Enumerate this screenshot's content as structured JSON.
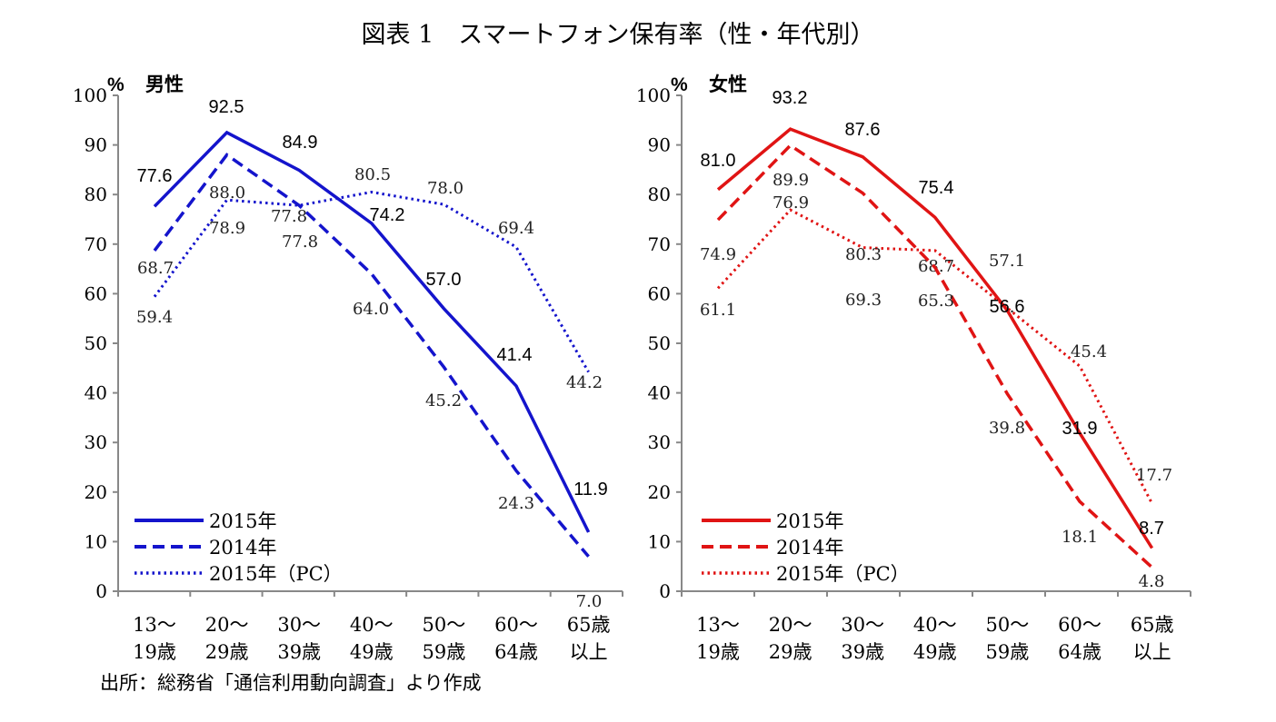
{
  "title": "図表 1　スマートフォン保有率（性・年代別）",
  "source": "出所：総務省「通信利用動向調査」より作成",
  "chart_data": [
    {
      "type": "line",
      "title": "男性",
      "ylabel": "%",
      "ylim": [
        0,
        100
      ],
      "yticks": [
        0,
        10,
        20,
        30,
        40,
        50,
        60,
        70,
        80,
        90,
        100
      ],
      "categories": [
        [
          "13～",
          "19歳"
        ],
        [
          "20～",
          "29歳"
        ],
        [
          "30～",
          "39歳"
        ],
        [
          "40～",
          "49歳"
        ],
        [
          "50～",
          "59歳"
        ],
        [
          "60～",
          "64歳"
        ],
        [
          "65歳",
          "以上"
        ]
      ],
      "color": "#1414cc",
      "legend_position": "bottom-left",
      "series": [
        {
          "name": "2015年",
          "style": "solid",
          "values": [
            77.6,
            92.5,
            84.9,
            74.2,
            57.0,
            41.4,
            11.9
          ]
        },
        {
          "name": "2014年",
          "style": "dashed",
          "values": [
            68.7,
            88.0,
            77.8,
            64.0,
            45.2,
            24.3,
            7.0
          ]
        },
        {
          "name": "2015年（PC）",
          "style": "dotted",
          "values": [
            59.4,
            78.9,
            77.8,
            80.5,
            78.0,
            69.4,
            44.2
          ]
        }
      ]
    },
    {
      "type": "line",
      "title": "女性",
      "ylabel": "%",
      "ylim": [
        0,
        100
      ],
      "yticks": [
        0,
        10,
        20,
        30,
        40,
        50,
        60,
        70,
        80,
        90,
        100
      ],
      "categories": [
        [
          "13～",
          "19歳"
        ],
        [
          "20～",
          "29歳"
        ],
        [
          "30～",
          "39歳"
        ],
        [
          "40～",
          "49歳"
        ],
        [
          "50～",
          "59歳"
        ],
        [
          "60～",
          "64歳"
        ],
        [
          "65歳",
          "以上"
        ]
      ],
      "color": "#e01414",
      "legend_position": "bottom-left",
      "series": [
        {
          "name": "2015年",
          "style": "solid",
          "values": [
            81.0,
            93.2,
            87.6,
            75.4,
            56.6,
            31.9,
            8.7
          ]
        },
        {
          "name": "2014年",
          "style": "dashed",
          "values": [
            74.9,
            89.9,
            80.3,
            65.3,
            39.8,
            18.1,
            4.8
          ]
        },
        {
          "name": "2015年（PC）",
          "style": "dotted",
          "values": [
            61.1,
            76.9,
            69.3,
            68.7,
            57.1,
            45.4,
            17.7
          ]
        }
      ]
    }
  ]
}
